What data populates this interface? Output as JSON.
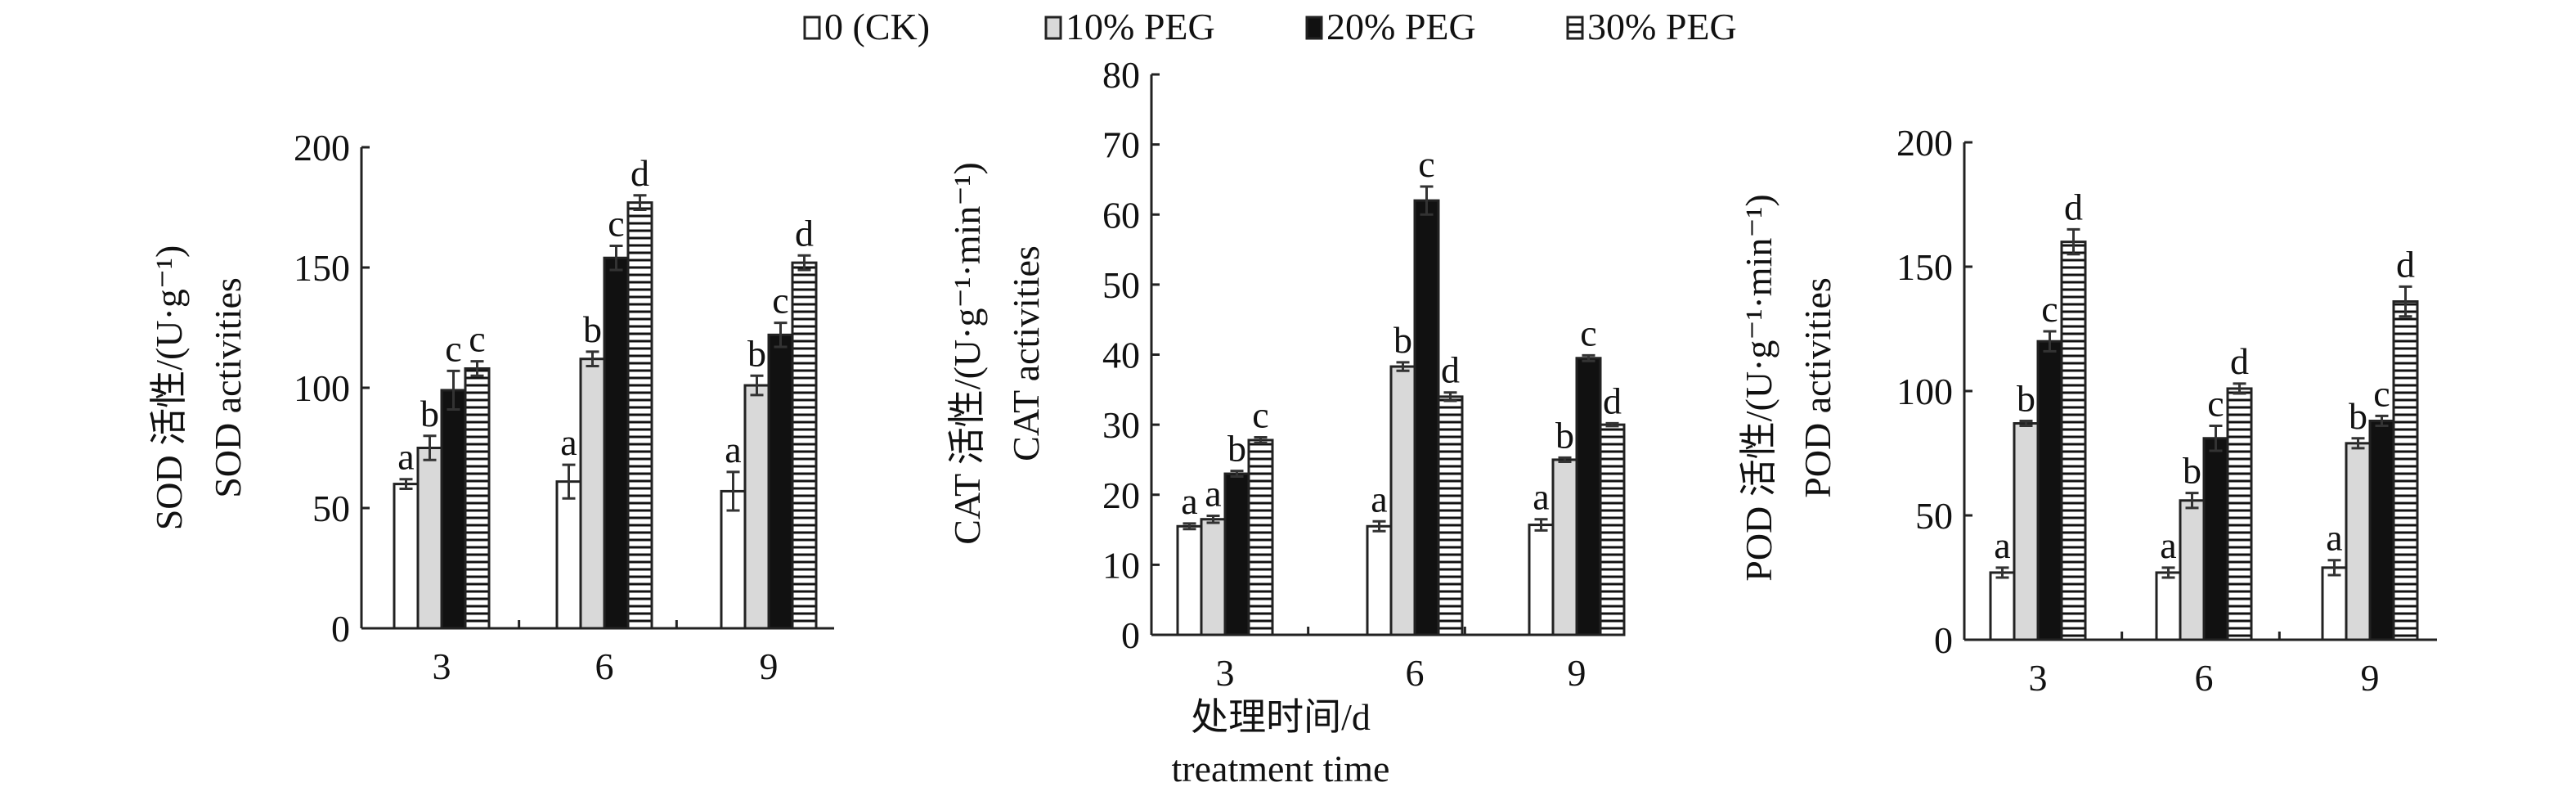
{
  "legend": [
    {
      "label": "0 (CK)",
      "fill": "#ffffff"
    },
    {
      "label": "10% PEG",
      "fill": "#d9d9d9"
    },
    {
      "label": "20% PEG",
      "fill": "#111111"
    },
    {
      "label": "30% PEG",
      "fill": "hatch"
    }
  ],
  "xaxis_title": {
    "cn": "处理时间/d",
    "en": "treatment time"
  },
  "chart_data": [
    {
      "type": "bar",
      "name": "SOD",
      "ylabel_cn": "SOD 活性/(U·g⁻¹)",
      "ylabel_en": "SOD activities",
      "ylim": [
        0,
        200
      ],
      "yticks": [
        0,
        50,
        100,
        150,
        200
      ],
      "categories": [
        "3",
        "6",
        "9"
      ],
      "series": [
        {
          "name": "0 (CK)",
          "values": [
            60,
            61,
            57
          ],
          "errors": [
            2,
            7,
            8
          ],
          "letters": [
            "a",
            "a",
            "a"
          ]
        },
        {
          "name": "10% PEG",
          "values": [
            75,
            112,
            101
          ],
          "errors": [
            5,
            3,
            4
          ],
          "letters": [
            "b",
            "b",
            "b"
          ]
        },
        {
          "name": "20% PEG",
          "values": [
            99,
            154,
            122
          ],
          "errors": [
            8,
            5,
            5
          ],
          "letters": [
            "c",
            "c",
            "c"
          ]
        },
        {
          "name": "30% PEG",
          "values": [
            108,
            177,
            152
          ],
          "errors": [
            3,
            3,
            3
          ],
          "letters": [
            "c",
            "d",
            "d"
          ]
        }
      ]
    },
    {
      "type": "bar",
      "name": "CAT",
      "ylabel_cn": "CAT 活性/(U·g⁻¹·min⁻¹)",
      "ylabel_en": "CAT activities",
      "ylim": [
        0,
        80
      ],
      "yticks": [
        0,
        10,
        20,
        30,
        40,
        50,
        60,
        70,
        80
      ],
      "categories": [
        "3",
        "6",
        "9"
      ],
      "series": [
        {
          "name": "0 (CK)",
          "values": [
            15.5,
            15.5,
            15.7
          ],
          "errors": [
            0.4,
            0.7,
            0.8
          ],
          "letters": [
            "a",
            "a",
            "a"
          ]
        },
        {
          "name": "10% PEG",
          "values": [
            16.5,
            38.3,
            25.0
          ],
          "errors": [
            0.5,
            0.6,
            0.3
          ],
          "letters": [
            "a",
            "b",
            "b"
          ]
        },
        {
          "name": "20% PEG",
          "values": [
            23.0,
            62.0,
            39.5
          ],
          "errors": [
            0.4,
            2.0,
            0.4
          ],
          "letters": [
            "b",
            "c",
            "c"
          ]
        },
        {
          "name": "30% PEG",
          "values": [
            27.8,
            34.0,
            30.0
          ],
          "errors": [
            0.4,
            0.6,
            0.2
          ],
          "letters": [
            "c",
            "d",
            "d"
          ]
        }
      ]
    },
    {
      "type": "bar",
      "name": "POD",
      "ylabel_cn": "POD 活性/(U·g⁻¹·min⁻¹)",
      "ylabel_en": "POD activities",
      "ylim": [
        0,
        200
      ],
      "yticks": [
        0,
        50,
        100,
        150,
        200
      ],
      "categories": [
        "3",
        "6",
        "9"
      ],
      "series": [
        {
          "name": "0 (CK)",
          "values": [
            27,
            27,
            29
          ],
          "errors": [
            2,
            2,
            3
          ],
          "letters": [
            "a",
            "a",
            "a"
          ]
        },
        {
          "name": "10% PEG",
          "values": [
            87,
            56,
            79
          ],
          "errors": [
            1,
            3,
            2
          ],
          "letters": [
            "b",
            "b",
            "b"
          ]
        },
        {
          "name": "20% PEG",
          "values": [
            120,
            81,
            88
          ],
          "errors": [
            4,
            5,
            2
          ],
          "letters": [
            "c",
            "c",
            "c"
          ]
        },
        {
          "name": "30% PEG",
          "values": [
            160,
            101,
            136
          ],
          "errors": [
            5,
            2,
            6
          ],
          "letters": [
            "d",
            "d",
            "d"
          ]
        }
      ]
    }
  ]
}
